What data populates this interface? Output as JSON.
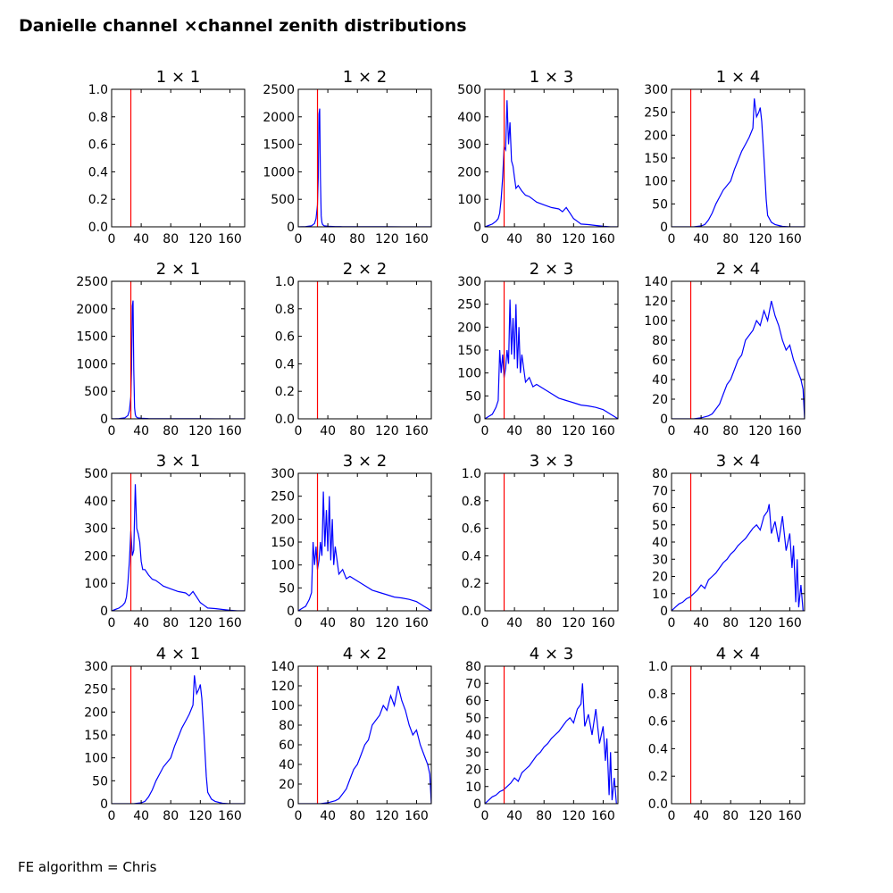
{
  "figure": {
    "title": "Danielle channel ×channel zenith distributions",
    "footer": "FE algorithm = Chris",
    "colors": {
      "histogram": "#0000ff",
      "marker_line": "#ff0000",
      "axes": "#000000"
    }
  },
  "chart_data": [
    {
      "type": "line",
      "title": "1  × 1",
      "xlim": [
        0,
        180
      ],
      "ylim": [
        0,
        1
      ],
      "xticks": [
        "0",
        "40",
        "80",
        "120",
        "160"
      ],
      "yticks": [
        "0.0",
        "0.2",
        "0.4",
        "0.6",
        "0.8",
        "1.0"
      ],
      "x": [],
      "y": [],
      "vline": 26
    },
    {
      "type": "line",
      "title": "1  × 2",
      "xlim": [
        0,
        180
      ],
      "ylim": [
        0,
        2500
      ],
      "xticks": [
        "0",
        "40",
        "80",
        "120",
        "160"
      ],
      "yticks": [
        "0",
        "500",
        "1000",
        "1500",
        "2000",
        "2500"
      ],
      "x": [
        0,
        10,
        18,
        22,
        24,
        26,
        27,
        28,
        29,
        30,
        31,
        32,
        33,
        35,
        40,
        50,
        60,
        80,
        100,
        120,
        140,
        160,
        180
      ],
      "y": [
        0,
        5,
        20,
        60,
        150,
        400,
        900,
        2050,
        2150,
        900,
        200,
        80,
        40,
        20,
        10,
        5,
        3,
        2,
        1,
        1,
        0,
        0,
        0
      ],
      "vline": 26
    },
    {
      "type": "line",
      "title": "1  × 3",
      "xlim": [
        0,
        180
      ],
      "ylim": [
        0,
        500
      ],
      "xticks": [
        "0",
        "40",
        "80",
        "120",
        "160"
      ],
      "yticks": [
        "0",
        "100",
        "200",
        "300",
        "400",
        "500"
      ],
      "x": [
        0,
        5,
        10,
        15,
        18,
        20,
        22,
        24,
        26,
        28,
        30,
        32,
        34,
        36,
        38,
        40,
        42,
        45,
        50,
        55,
        60,
        65,
        70,
        80,
        90,
        100,
        105,
        110,
        115,
        120,
        125,
        130,
        140,
        150,
        160,
        170,
        180
      ],
      "y": [
        0,
        5,
        10,
        20,
        30,
        50,
        100,
        180,
        290,
        280,
        460,
        300,
        380,
        240,
        220,
        180,
        140,
        150,
        130,
        115,
        110,
        100,
        90,
        80,
        70,
        65,
        55,
        70,
        50,
        30,
        20,
        10,
        8,
        5,
        2,
        0,
        0
      ],
      "vline": 26
    },
    {
      "type": "line",
      "title": "1  × 4",
      "xlim": [
        0,
        180
      ],
      "ylim": [
        0,
        300
      ],
      "xticks": [
        "0",
        "40",
        "80",
        "120",
        "160"
      ],
      "yticks": [
        "0",
        "50",
        "100",
        "150",
        "200",
        "250",
        "300"
      ],
      "x": [
        0,
        20,
        30,
        40,
        45,
        50,
        55,
        60,
        65,
        70,
        75,
        80,
        85,
        90,
        95,
        100,
        105,
        110,
        112,
        115,
        118,
        120,
        122,
        125,
        128,
        130,
        135,
        140,
        145,
        150,
        160,
        180
      ],
      "y": [
        0,
        0,
        0,
        2,
        5,
        15,
        30,
        50,
        65,
        80,
        90,
        100,
        125,
        145,
        165,
        180,
        195,
        215,
        280,
        240,
        250,
        260,
        230,
        150,
        60,
        25,
        10,
        5,
        3,
        1,
        0,
        0
      ],
      "vline": 26
    },
    {
      "type": "line",
      "title": "2  × 1",
      "xlim": [
        0,
        180
      ],
      "ylim": [
        0,
        2500
      ],
      "xticks": [
        "0",
        "40",
        "80",
        "120",
        "160"
      ],
      "yticks": [
        "0",
        "500",
        "1000",
        "1500",
        "2000",
        "2500"
      ],
      "x": [
        0,
        10,
        18,
        22,
        24,
        26,
        27,
        28,
        29,
        30,
        31,
        32,
        33,
        35,
        40,
        50,
        60,
        80,
        100,
        120,
        140,
        160,
        180
      ],
      "y": [
        0,
        5,
        20,
        60,
        150,
        400,
        900,
        2050,
        2150,
        900,
        200,
        80,
        40,
        20,
        10,
        5,
        3,
        2,
        1,
        1,
        0,
        0,
        0
      ],
      "vline": 26
    },
    {
      "type": "line",
      "title": "2  × 2",
      "xlim": [
        0,
        180
      ],
      "ylim": [
        0,
        1
      ],
      "xticks": [
        "0",
        "40",
        "80",
        "120",
        "160"
      ],
      "yticks": [
        "0.0",
        "0.2",
        "0.4",
        "0.6",
        "0.8",
        "1.0"
      ],
      "x": [],
      "y": [],
      "vline": 26
    },
    {
      "type": "line",
      "title": "2  × 3",
      "xlim": [
        0,
        180
      ],
      "ylim": [
        0,
        300
      ],
      "xticks": [
        "0",
        "40",
        "80",
        "120",
        "160"
      ],
      "yticks": [
        "0",
        "50",
        "100",
        "150",
        "200",
        "250",
        "300"
      ],
      "x": [
        0,
        5,
        10,
        15,
        18,
        20,
        22,
        24,
        26,
        28,
        30,
        32,
        34,
        36,
        38,
        40,
        42,
        44,
        46,
        48,
        50,
        55,
        60,
        65,
        70,
        80,
        90,
        100,
        110,
        120,
        130,
        140,
        150,
        160,
        165,
        170,
        175,
        180
      ],
      "y": [
        0,
        5,
        10,
        25,
        40,
        150,
        100,
        140,
        90,
        110,
        150,
        120,
        260,
        140,
        220,
        130,
        250,
        110,
        200,
        100,
        140,
        80,
        90,
        70,
        75,
        65,
        55,
        45,
        40,
        35,
        30,
        28,
        25,
        20,
        15,
        10,
        5,
        0
      ],
      "vline": 26
    },
    {
      "type": "line",
      "title": "2  × 4",
      "xlim": [
        0,
        180
      ],
      "ylim": [
        0,
        140
      ],
      "xticks": [
        "0",
        "40",
        "80",
        "120",
        "160"
      ],
      "yticks": [
        "0",
        "20",
        "40",
        "60",
        "80",
        "100",
        "120",
        "140"
      ],
      "x": [
        0,
        20,
        30,
        40,
        50,
        55,
        60,
        65,
        70,
        75,
        80,
        85,
        90,
        95,
        100,
        105,
        110,
        115,
        120,
        125,
        130,
        135,
        140,
        145,
        150,
        155,
        160,
        165,
        170,
        175,
        178,
        180
      ],
      "y": [
        0,
        0,
        0,
        1,
        3,
        5,
        10,
        15,
        25,
        35,
        40,
        50,
        60,
        65,
        80,
        85,
        90,
        100,
        95,
        110,
        100,
        120,
        105,
        95,
        80,
        70,
        75,
        60,
        50,
        40,
        30,
        0
      ],
      "vline": 26
    },
    {
      "type": "line",
      "title": "3  × 1",
      "xlim": [
        0,
        180
      ],
      "ylim": [
        0,
        500
      ],
      "xticks": [
        "0",
        "40",
        "80",
        "120",
        "160"
      ],
      "yticks": [
        "0",
        "100",
        "200",
        "300",
        "400",
        "500"
      ],
      "x": [
        0,
        5,
        10,
        15,
        18,
        20,
        22,
        24,
        26,
        28,
        30,
        32,
        34,
        36,
        38,
        40,
        42,
        45,
        50,
        55,
        60,
        65,
        70,
        80,
        90,
        100,
        105,
        110,
        115,
        120,
        125,
        130,
        140,
        150,
        160,
        170,
        180
      ],
      "y": [
        0,
        5,
        10,
        20,
        30,
        50,
        100,
        180,
        290,
        200,
        220,
        460,
        300,
        280,
        250,
        180,
        150,
        150,
        130,
        115,
        110,
        100,
        90,
        80,
        70,
        65,
        55,
        70,
        50,
        30,
        20,
        10,
        8,
        5,
        2,
        0,
        0
      ],
      "vline": 26
    },
    {
      "type": "line",
      "title": "3  × 2",
      "xlim": [
        0,
        180
      ],
      "ylim": [
        0,
        300
      ],
      "xticks": [
        "0",
        "40",
        "80",
        "120",
        "160"
      ],
      "yticks": [
        "0",
        "50",
        "100",
        "150",
        "200",
        "250",
        "300"
      ],
      "x": [
        0,
        5,
        10,
        15,
        18,
        20,
        22,
        24,
        26,
        28,
        30,
        32,
        34,
        36,
        38,
        40,
        42,
        44,
        46,
        48,
        50,
        55,
        60,
        65,
        70,
        80,
        90,
        100,
        110,
        120,
        130,
        140,
        150,
        160,
        165,
        170,
        175,
        180
      ],
      "y": [
        0,
        5,
        10,
        25,
        40,
        150,
        100,
        140,
        90,
        110,
        150,
        120,
        260,
        140,
        220,
        130,
        250,
        110,
        200,
        100,
        140,
        80,
        90,
        70,
        75,
        65,
        55,
        45,
        40,
        35,
        30,
        28,
        25,
        20,
        15,
        10,
        5,
        0
      ],
      "vline": 26
    },
    {
      "type": "line",
      "title": "3  × 3",
      "xlim": [
        0,
        180
      ],
      "ylim": [
        0,
        1
      ],
      "xticks": [
        "0",
        "40",
        "80",
        "120",
        "160"
      ],
      "yticks": [
        "0.0",
        "0.2",
        "0.4",
        "0.6",
        "0.8",
        "1.0"
      ],
      "x": [],
      "y": [],
      "vline": 26
    },
    {
      "type": "line",
      "title": "3  × 4",
      "xlim": [
        0,
        180
      ],
      "ylim": [
        0,
        80
      ],
      "xticks": [
        "0",
        "40",
        "80",
        "120",
        "160"
      ],
      "yticks": [
        "0",
        "10",
        "20",
        "30",
        "40",
        "50",
        "60",
        "70",
        "80"
      ],
      "x": [
        0,
        5,
        10,
        15,
        20,
        25,
        30,
        35,
        40,
        45,
        50,
        55,
        60,
        65,
        70,
        75,
        80,
        85,
        90,
        95,
        100,
        105,
        110,
        115,
        120,
        125,
        130,
        132,
        135,
        140,
        145,
        150,
        155,
        160,
        163,
        165,
        168,
        170,
        172,
        175,
        178,
        180
      ],
      "y": [
        0,
        2,
        4,
        5,
        7,
        8,
        10,
        12,
        15,
        13,
        18,
        20,
        22,
        25,
        28,
        30,
        33,
        35,
        38,
        40,
        42,
        45,
        48,
        50,
        47,
        55,
        58,
        62,
        45,
        52,
        40,
        55,
        35,
        45,
        25,
        38,
        5,
        30,
        2,
        15,
        0,
        0
      ],
      "vline": 26
    },
    {
      "type": "line",
      "title": "4  × 1",
      "xlim": [
        0,
        180
      ],
      "ylim": [
        0,
        300
      ],
      "xticks": [
        "0",
        "40",
        "80",
        "120",
        "160"
      ],
      "yticks": [
        "0",
        "50",
        "100",
        "150",
        "200",
        "250",
        "300"
      ],
      "x": [
        0,
        20,
        30,
        40,
        45,
        50,
        55,
        60,
        65,
        70,
        75,
        80,
        85,
        90,
        95,
        100,
        105,
        110,
        112,
        115,
        118,
        120,
        122,
        125,
        128,
        130,
        135,
        140,
        145,
        150,
        160,
        180
      ],
      "y": [
        0,
        0,
        0,
        2,
        5,
        15,
        30,
        50,
        65,
        80,
        90,
        100,
        125,
        145,
        165,
        180,
        195,
        215,
        280,
        240,
        250,
        260,
        230,
        150,
        60,
        25,
        10,
        5,
        3,
        1,
        0,
        0
      ],
      "vline": 26
    },
    {
      "type": "line",
      "title": "4  × 2",
      "xlim": [
        0,
        180
      ],
      "ylim": [
        0,
        140
      ],
      "xticks": [
        "0",
        "40",
        "80",
        "120",
        "160"
      ],
      "yticks": [
        "0",
        "20",
        "40",
        "60",
        "80",
        "100",
        "120",
        "140"
      ],
      "x": [
        0,
        20,
        30,
        40,
        50,
        55,
        60,
        65,
        70,
        75,
        80,
        85,
        90,
        95,
        100,
        105,
        110,
        115,
        120,
        125,
        130,
        135,
        140,
        145,
        150,
        155,
        160,
        165,
        170,
        175,
        178,
        180
      ],
      "y": [
        0,
        0,
        0,
        1,
        3,
        5,
        10,
        15,
        25,
        35,
        40,
        50,
        60,
        65,
        80,
        85,
        90,
        100,
        95,
        110,
        100,
        120,
        105,
        95,
        80,
        70,
        75,
        60,
        50,
        40,
        30,
        0
      ],
      "vline": 26
    },
    {
      "type": "line",
      "title": "4  × 3",
      "xlim": [
        0,
        180
      ],
      "ylim": [
        0,
        80
      ],
      "xticks": [
        "0",
        "40",
        "80",
        "120",
        "160"
      ],
      "yticks": [
        "0",
        "10",
        "20",
        "30",
        "40",
        "50",
        "60",
        "70",
        "80"
      ],
      "x": [
        0,
        5,
        10,
        15,
        20,
        25,
        30,
        35,
        40,
        45,
        50,
        55,
        60,
        65,
        70,
        75,
        80,
        85,
        90,
        95,
        100,
        105,
        110,
        115,
        120,
        125,
        130,
        132,
        135,
        140,
        145,
        150,
        155,
        160,
        163,
        165,
        168,
        170,
        172,
        175,
        178,
        180
      ],
      "y": [
        0,
        2,
        4,
        5,
        7,
        8,
        10,
        12,
        15,
        13,
        18,
        20,
        22,
        25,
        28,
        30,
        33,
        35,
        38,
        40,
        42,
        45,
        48,
        50,
        47,
        55,
        58,
        70,
        45,
        52,
        40,
        55,
        35,
        45,
        25,
        38,
        5,
        30,
        2,
        15,
        0,
        0
      ],
      "vline": 26
    },
    {
      "type": "line",
      "title": "4  × 4",
      "xlim": [
        0,
        180
      ],
      "ylim": [
        0,
        1
      ],
      "xticks": [
        "0",
        "40",
        "80",
        "120",
        "160"
      ],
      "yticks": [
        "0.0",
        "0.2",
        "0.4",
        "0.6",
        "0.8",
        "1.0"
      ],
      "x": [],
      "y": [],
      "vline": 26
    }
  ]
}
